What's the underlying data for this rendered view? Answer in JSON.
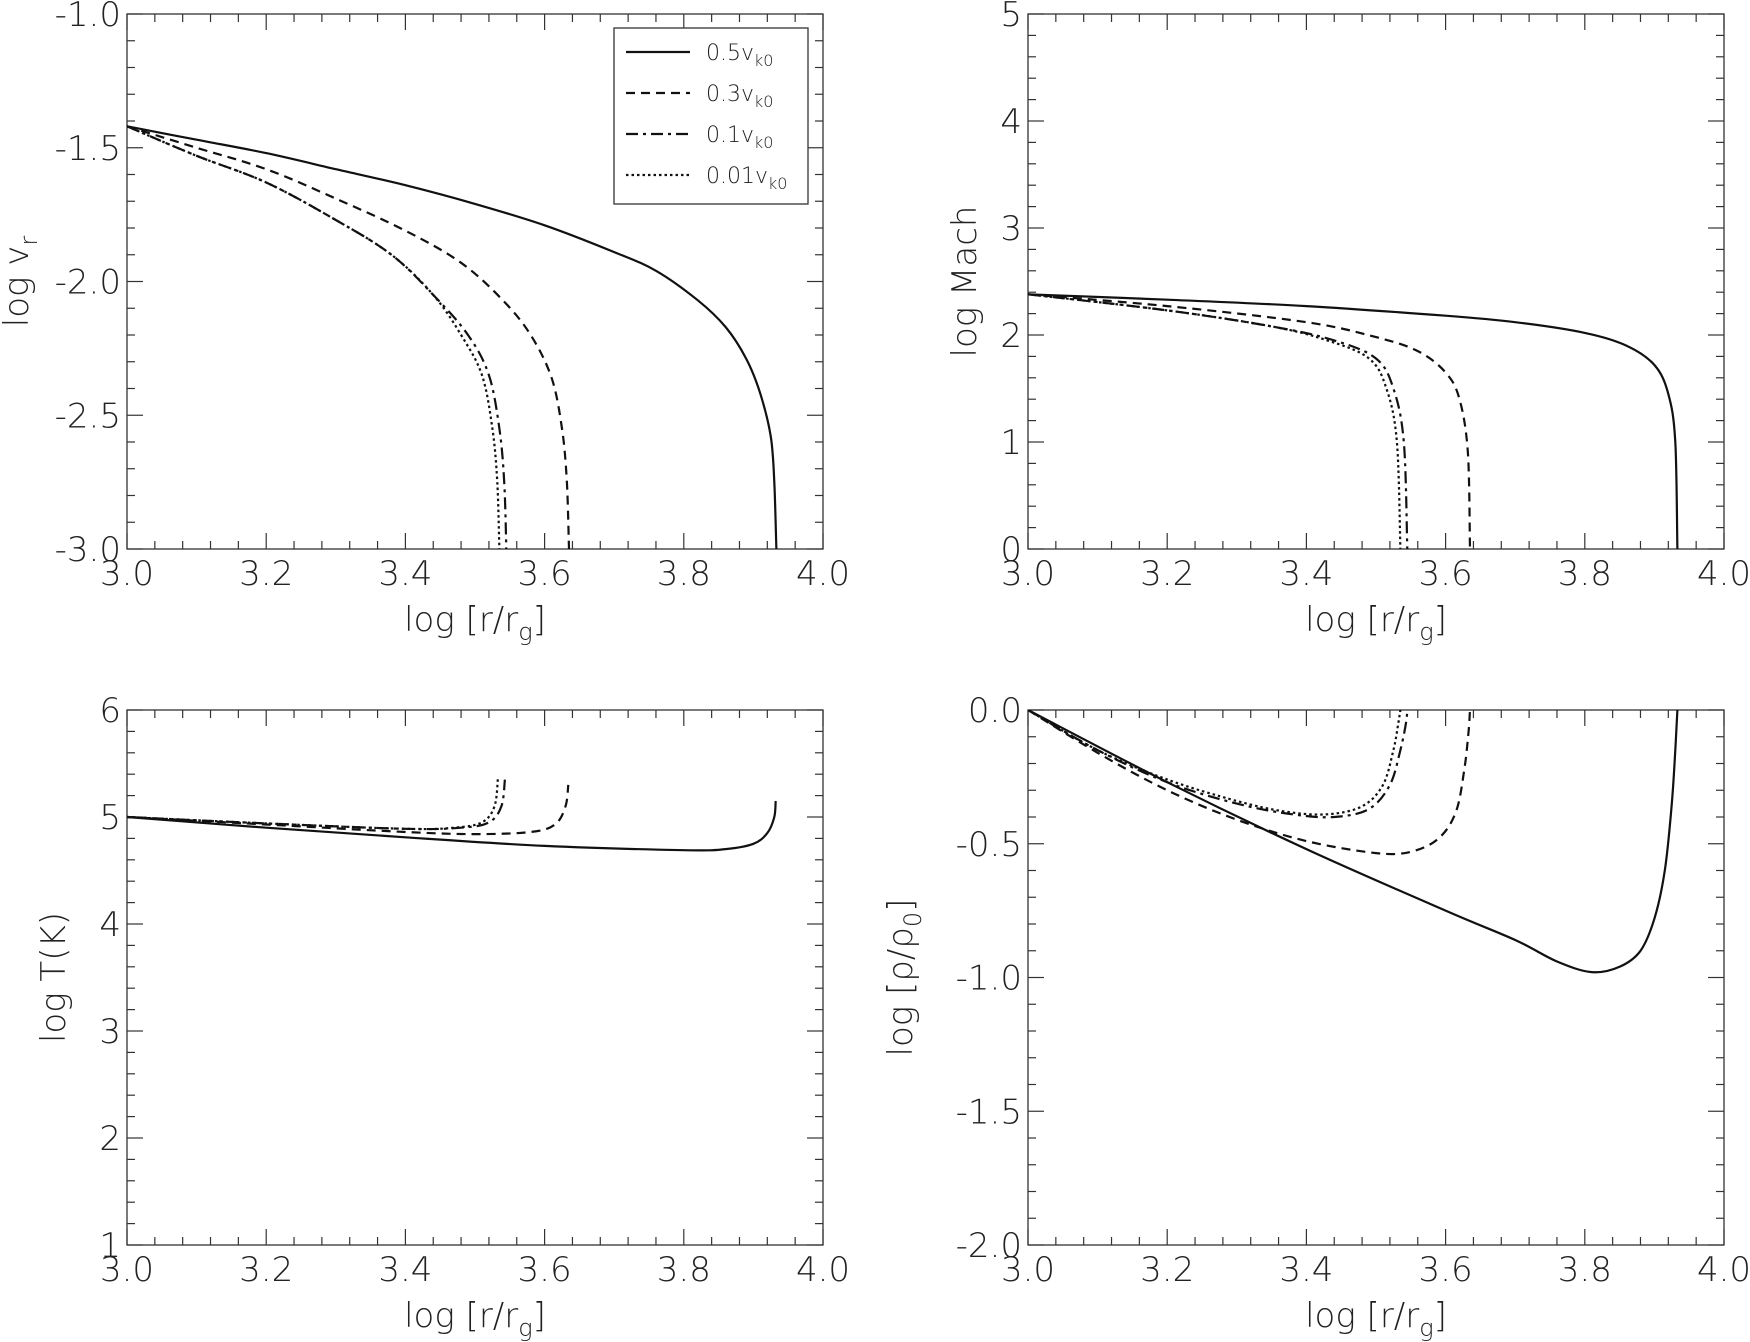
{
  "colors": {
    "line": "#111111",
    "frame": "#333333",
    "background": "#ffffff"
  },
  "legend": {
    "entries": [
      {
        "base": "0.5v",
        "sub": "k0",
        "style": "solid"
      },
      {
        "base": "0.3v",
        "sub": "k0",
        "style": "dashed"
      },
      {
        "base": "0.1v",
        "sub": "k0",
        "style": "dashdot"
      },
      {
        "base": "0.01v",
        "sub": "k0",
        "style": "dotted"
      }
    ]
  },
  "chart_data": [
    {
      "type": "line",
      "id": "vr",
      "xlabel": {
        "main": "log [r/r",
        "sub": "g",
        "tail": "]"
      },
      "ylabel": {
        "main": "log v",
        "sub": "r",
        "tail": ""
      },
      "xlim": [
        3.0,
        4.0
      ],
      "ylim": [
        -3.0,
        -1.0
      ],
      "xticks": [
        "3.0",
        "3.2",
        "3.4",
        "3.6",
        "3.8",
        "4.0"
      ],
      "yticks": [
        "-3.0",
        "-2.5",
        "-2.0",
        "-1.5",
        "-1.0"
      ],
      "series": [
        {
          "name": "0.5vk0",
          "style": "solid",
          "points": [
            [
              3.0,
              -1.42
            ],
            [
              3.1,
              -1.47
            ],
            [
              3.2,
              -1.52
            ],
            [
              3.3,
              -1.58
            ],
            [
              3.4,
              -1.64
            ],
            [
              3.5,
              -1.71
            ],
            [
              3.6,
              -1.79
            ],
            [
              3.7,
              -1.89
            ],
            [
              3.76,
              -1.96
            ],
            [
              3.82,
              -2.07
            ],
            [
              3.86,
              -2.17
            ],
            [
              3.89,
              -2.29
            ],
            [
              3.91,
              -2.42
            ],
            [
              3.925,
              -2.58
            ],
            [
              3.93,
              -2.75
            ],
            [
              3.933,
              -3.0
            ]
          ]
        },
        {
          "name": "0.3vk0",
          "style": "dashed",
          "points": [
            [
              3.0,
              -1.42
            ],
            [
              3.1,
              -1.5
            ],
            [
              3.2,
              -1.58
            ],
            [
              3.3,
              -1.69
            ],
            [
              3.4,
              -1.81
            ],
            [
              3.48,
              -1.93
            ],
            [
              3.54,
              -2.07
            ],
            [
              3.58,
              -2.2
            ],
            [
              3.61,
              -2.36
            ],
            [
              3.625,
              -2.55
            ],
            [
              3.632,
              -2.75
            ],
            [
              3.635,
              -3.0
            ]
          ]
        },
        {
          "name": "0.1vk0",
          "style": "dashdot",
          "points": [
            [
              3.0,
              -1.42
            ],
            [
              3.1,
              -1.53
            ],
            [
              3.2,
              -1.63
            ],
            [
              3.3,
              -1.77
            ],
            [
              3.38,
              -1.9
            ],
            [
              3.44,
              -2.05
            ],
            [
              3.49,
              -2.2
            ],
            [
              3.52,
              -2.35
            ],
            [
              3.535,
              -2.55
            ],
            [
              3.542,
              -2.75
            ],
            [
              3.545,
              -3.0
            ]
          ]
        },
        {
          "name": "0.01vk0",
          "style": "dotted",
          "points": [
            [
              3.0,
              -1.42
            ],
            [
              3.1,
              -1.53
            ],
            [
              3.2,
              -1.63
            ],
            [
              3.3,
              -1.77
            ],
            [
              3.38,
              -1.9
            ],
            [
              3.44,
              -2.05
            ],
            [
              3.48,
              -2.2
            ],
            [
              3.51,
              -2.35
            ],
            [
              3.525,
              -2.55
            ],
            [
              3.532,
              -2.75
            ],
            [
              3.535,
              -3.0
            ]
          ]
        }
      ]
    },
    {
      "type": "line",
      "id": "mach",
      "xlabel": {
        "main": "log [r/r",
        "sub": "g",
        "tail": "]"
      },
      "ylabel": {
        "main": "log Mach",
        "sub": "",
        "tail": ""
      },
      "xlim": [
        3.0,
        4.0
      ],
      "ylim": [
        0,
        5
      ],
      "xticks": [
        "3.0",
        "3.2",
        "3.4",
        "3.6",
        "3.8",
        "4.0"
      ],
      "yticks": [
        "0",
        "1",
        "2",
        "3",
        "4",
        "5"
      ],
      "series": [
        {
          "name": "0.5vk0",
          "style": "solid",
          "points": [
            [
              3.0,
              2.38
            ],
            [
              3.2,
              2.33
            ],
            [
              3.4,
              2.27
            ],
            [
              3.6,
              2.18
            ],
            [
              3.7,
              2.12
            ],
            [
              3.8,
              2.02
            ],
            [
              3.86,
              1.9
            ],
            [
              3.9,
              1.72
            ],
            [
              3.92,
              1.45
            ],
            [
              3.93,
              1.0
            ],
            [
              3.933,
              0.0
            ]
          ]
        },
        {
          "name": "0.3vk0",
          "style": "dashed",
          "points": [
            [
              3.0,
              2.38
            ],
            [
              3.2,
              2.27
            ],
            [
              3.4,
              2.12
            ],
            [
              3.5,
              1.98
            ],
            [
              3.56,
              1.85
            ],
            [
              3.6,
              1.65
            ],
            [
              3.62,
              1.4
            ],
            [
              3.632,
              0.9
            ],
            [
              3.635,
              0.0
            ]
          ]
        },
        {
          "name": "0.1vk0",
          "style": "dashdot",
          "points": [
            [
              3.0,
              2.38
            ],
            [
              3.2,
              2.23
            ],
            [
              3.35,
              2.08
            ],
            [
              3.44,
              1.95
            ],
            [
              3.5,
              1.78
            ],
            [
              3.525,
              1.5
            ],
            [
              3.54,
              1.0
            ],
            [
              3.545,
              0.0
            ]
          ]
        },
        {
          "name": "0.01vk0",
          "style": "dotted",
          "points": [
            [
              3.0,
              2.38
            ],
            [
              3.2,
              2.23
            ],
            [
              3.35,
              2.08
            ],
            [
              3.43,
              1.95
            ],
            [
              3.49,
              1.78
            ],
            [
              3.515,
              1.5
            ],
            [
              3.53,
              1.0
            ],
            [
              3.535,
              0.0
            ]
          ]
        }
      ]
    },
    {
      "type": "line",
      "id": "temp",
      "xlabel": {
        "main": "log [r/r",
        "sub": "g",
        "tail": "]"
      },
      "ylabel": {
        "main": "log T(K)",
        "sub": "",
        "tail": ""
      },
      "xlim": [
        3.0,
        4.0
      ],
      "ylim": [
        1,
        6
      ],
      "xticks": [
        "3.0",
        "3.2",
        "3.4",
        "3.6",
        "3.8",
        "4.0"
      ],
      "yticks": [
        "1",
        "2",
        "3",
        "4",
        "5",
        "6"
      ],
      "series": [
        {
          "name": "0.5vk0",
          "style": "solid",
          "points": [
            [
              3.0,
              5.0
            ],
            [
              3.2,
              4.9
            ],
            [
              3.4,
              4.81
            ],
            [
              3.6,
              4.73
            ],
            [
              3.8,
              4.69
            ],
            [
              3.86,
              4.7
            ],
            [
              3.9,
              4.75
            ],
            [
              3.92,
              4.85
            ],
            [
              3.93,
              5.0
            ],
            [
              3.932,
              5.15
            ]
          ]
        },
        {
          "name": "0.3vk0",
          "style": "dashed",
          "points": [
            [
              3.0,
              5.0
            ],
            [
              3.2,
              4.93
            ],
            [
              3.4,
              4.86
            ],
            [
              3.5,
              4.84
            ],
            [
              3.58,
              4.86
            ],
            [
              3.615,
              4.93
            ],
            [
              3.63,
              5.1
            ],
            [
              3.634,
              5.3
            ]
          ]
        },
        {
          "name": "0.1vk0",
          "style": "dashdot",
          "points": [
            [
              3.0,
              5.0
            ],
            [
              3.2,
              4.94
            ],
            [
              3.4,
              4.89
            ],
            [
              3.48,
              4.9
            ],
            [
              3.52,
              4.95
            ],
            [
              3.538,
              5.1
            ],
            [
              3.543,
              5.35
            ]
          ]
        },
        {
          "name": "0.01vk0",
          "style": "dotted",
          "points": [
            [
              3.0,
              5.0
            ],
            [
              3.2,
              4.94
            ],
            [
              3.4,
              4.89
            ],
            [
              3.47,
              4.9
            ],
            [
              3.51,
              4.95
            ],
            [
              3.528,
              5.1
            ],
            [
              3.533,
              5.37
            ]
          ]
        }
      ]
    },
    {
      "type": "line",
      "id": "rho",
      "xlabel": {
        "main": "log [r/r",
        "sub": "g",
        "tail": "]"
      },
      "ylabel": {
        "main": "log [ρ/ρ",
        "sub": "0",
        "tail": "]"
      },
      "xlim": [
        3.0,
        4.0
      ],
      "ylim": [
        -2.0,
        0.0
      ],
      "xticks": [
        "3.0",
        "3.2",
        "3.4",
        "3.6",
        "3.8",
        "4.0"
      ],
      "yticks": [
        "-2.0",
        "-1.5",
        "-1.0",
        "-0.5",
        "0.0"
      ],
      "series": [
        {
          "name": "0.5vk0",
          "style": "solid",
          "points": [
            [
              3.0,
              0.0
            ],
            [
              3.2,
              -0.27
            ],
            [
              3.4,
              -0.52
            ],
            [
              3.6,
              -0.75
            ],
            [
              3.7,
              -0.86
            ],
            [
              3.76,
              -0.94
            ],
            [
              3.81,
              -0.98
            ],
            [
              3.85,
              -0.96
            ],
            [
              3.88,
              -0.9
            ],
            [
              3.9,
              -0.78
            ],
            [
              3.915,
              -0.6
            ],
            [
              3.925,
              -0.35
            ],
            [
              3.93,
              -0.15
            ],
            [
              3.933,
              0.0
            ]
          ]
        },
        {
          "name": "0.3vk0",
          "style": "dashed",
          "points": [
            [
              3.0,
              0.0
            ],
            [
              3.1,
              -0.16
            ],
            [
              3.2,
              -0.3
            ],
            [
              3.3,
              -0.41
            ],
            [
              3.4,
              -0.49
            ],
            [
              3.5,
              -0.535
            ],
            [
              3.55,
              -0.53
            ],
            [
              3.59,
              -0.48
            ],
            [
              3.615,
              -0.38
            ],
            [
              3.627,
              -0.22
            ],
            [
              3.633,
              -0.08
            ],
            [
              3.635,
              0.0
            ]
          ]
        },
        {
          "name": "0.1vk0",
          "style": "dashdot",
          "points": [
            [
              3.0,
              0.0
            ],
            [
              3.1,
              -0.15
            ],
            [
              3.2,
              -0.27
            ],
            [
              3.3,
              -0.35
            ],
            [
              3.38,
              -0.39
            ],
            [
              3.44,
              -0.4
            ],
            [
              3.49,
              -0.37
            ],
            [
              3.52,
              -0.28
            ],
            [
              3.535,
              -0.15
            ],
            [
              3.543,
              -0.05
            ],
            [
              3.545,
              0.0
            ]
          ]
        },
        {
          "name": "0.01vk0",
          "style": "dotted",
          "points": [
            [
              3.0,
              0.0
            ],
            [
              3.1,
              -0.15
            ],
            [
              3.2,
              -0.26
            ],
            [
              3.3,
              -0.34
            ],
            [
              3.37,
              -0.38
            ],
            [
              3.43,
              -0.39
            ],
            [
              3.48,
              -0.36
            ],
            [
              3.51,
              -0.28
            ],
            [
              3.525,
              -0.15
            ],
            [
              3.532,
              -0.05
            ],
            [
              3.535,
              0.0
            ]
          ]
        }
      ]
    }
  ]
}
